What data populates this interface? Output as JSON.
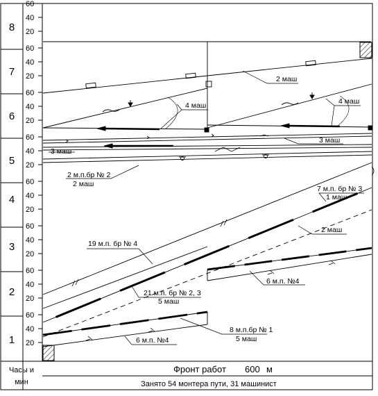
{
  "hour_labels": [
    "8",
    "7",
    "6",
    "5",
    "4",
    "3",
    "2",
    "1"
  ],
  "minute_labels": [
    "60",
    "40",
    "20"
  ],
  "footer": {
    "hours_line1": "Часы и",
    "hours_line2": "мин",
    "front_prefix": "Фронт работ",
    "front_value": "600",
    "front_unit": "м",
    "summary": "Занято 54 монтера пути, 31 машинист"
  },
  "annotations": {
    "a_2mash_top": "2 маш",
    "a_4mash_left": "4 маш",
    "a_4mash_right": "4 маш",
    "a_3mash_left": "3 маш",
    "a_3mash_right": "3 маш",
    "a_2mp_br2_l1": "2 м.п.бр № 2",
    "a_2mp_br2_l2": "2 маш",
    "a_7mp_br3_l1": "7 м.п. бр № 3",
    "a_7mp_br3_l2": "1 маш",
    "a_2mash_mid": "2 маш",
    "a_19mp_br4": "19 м.п. бр № 4",
    "a_6mp_4_right": "6 м.п. №4",
    "a_21mp_br23_l1": "21 м.п. бр № 2, 3",
    "a_21mp_br23_l2": "5 маш",
    "a_8mp_br1_l1": "8 м.п.бр № 1",
    "a_8mp_br1_l2": "5 маш",
    "a_6mp_4_left": "6 м.п. №4"
  }
}
